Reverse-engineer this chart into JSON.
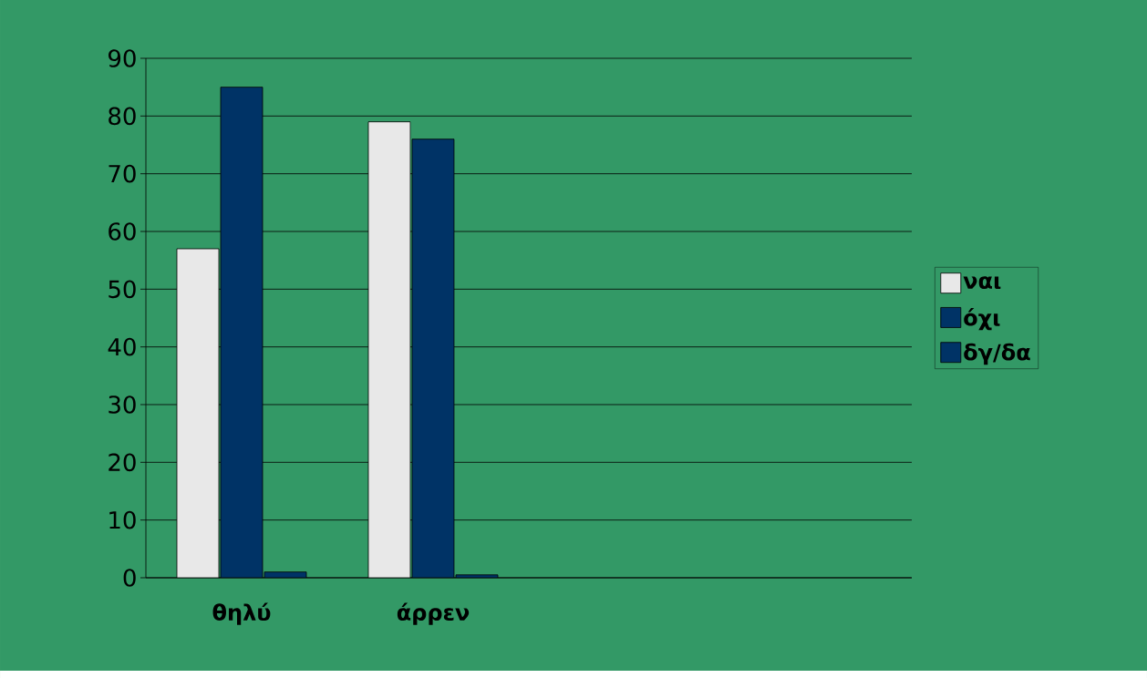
{
  "chart_data": {
    "type": "bar",
    "categories": [
      "θηλύ",
      "άρρεν",
      null,
      null
    ],
    "series": [
      {
        "name": "ναι",
        "color": "#e8e8e8",
        "values": [
          57,
          79,
          null,
          null
        ]
      },
      {
        "name": "όχι",
        "color": "#003366",
        "values": [
          85,
          76,
          null,
          null
        ]
      },
      {
        "name": "δγ/δα",
        "color": "#003366",
        "values": [
          1,
          0.5,
          null,
          null
        ]
      }
    ],
    "ylim": [
      0,
      90
    ],
    "yticks": [
      0,
      10,
      20,
      30,
      40,
      50,
      60,
      70,
      80,
      90
    ],
    "grid": "y",
    "legend": "right"
  }
}
